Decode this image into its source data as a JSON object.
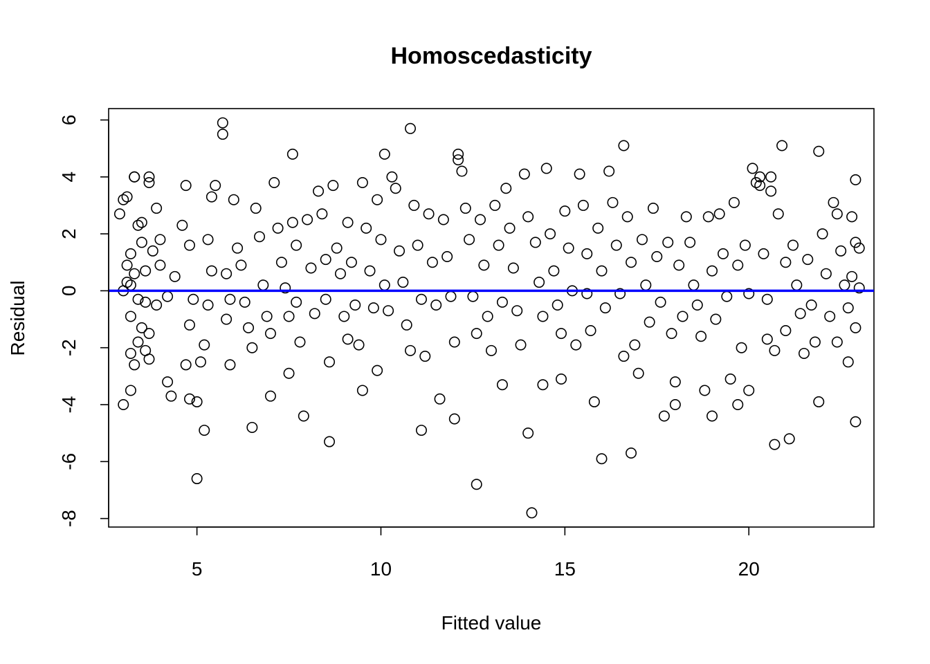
{
  "chart_data": {
    "type": "scatter",
    "title": "Homoscedasticity",
    "xlabel": "Fitted value",
    "ylabel": "Residual",
    "xlim": [
      2.6,
      23.4
    ],
    "ylim": [
      -8.3,
      6.4
    ],
    "x_ticks": [
      5,
      10,
      15,
      20
    ],
    "y_ticks": [
      -8,
      -6,
      -4,
      -2,
      0,
      2,
      4,
      6
    ],
    "grid": false,
    "reference_line": {
      "y": 0,
      "color": "#0000ff"
    },
    "point_color": "#000000",
    "points": [
      [
        3.0,
        3.2
      ],
      [
        3.1,
        3.3
      ],
      [
        2.9,
        2.7
      ],
      [
        3.3,
        4.0
      ],
      [
        3.3,
        4.0
      ],
      [
        3.7,
        4.0
      ],
      [
        3.7,
        3.8
      ],
      [
        3.5,
        2.4
      ],
      [
        3.4,
        2.3
      ],
      [
        3.9,
        2.9
      ],
      [
        4.0,
        1.8
      ],
      [
        3.5,
        1.7
      ],
      [
        3.2,
        1.3
      ],
      [
        3.8,
        1.4
      ],
      [
        3.1,
        0.9
      ],
      [
        3.3,
        0.6
      ],
      [
        3.6,
        0.7
      ],
      [
        4.0,
        0.9
      ],
      [
        3.1,
        0.3
      ],
      [
        3.2,
        0.2
      ],
      [
        3.0,
        0.0
      ],
      [
        3.4,
        -0.3
      ],
      [
        3.6,
        -0.4
      ],
      [
        3.9,
        -0.5
      ],
      [
        3.2,
        -0.9
      ],
      [
        3.5,
        -1.3
      ],
      [
        3.7,
        -1.5
      ],
      [
        3.4,
        -1.8
      ],
      [
        3.2,
        -2.2
      ],
      [
        3.6,
        -2.1
      ],
      [
        3.3,
        -2.6
      ],
      [
        3.7,
        -2.4
      ],
      [
        3.0,
        -4.0
      ],
      [
        3.2,
        -3.5
      ],
      [
        4.2,
        -3.2
      ],
      [
        4.3,
        -3.7
      ],
      [
        4.2,
        -0.2
      ],
      [
        4.4,
        0.5
      ],
      [
        4.6,
        2.3
      ],
      [
        4.7,
        3.7
      ],
      [
        4.8,
        1.6
      ],
      [
        4.9,
        -0.3
      ],
      [
        4.8,
        -1.2
      ],
      [
        4.7,
        -2.6
      ],
      [
        4.8,
        -3.8
      ],
      [
        5.0,
        -3.9
      ],
      [
        5.0,
        -6.6
      ],
      [
        5.2,
        -4.9
      ],
      [
        5.1,
        -2.5
      ],
      [
        5.2,
        -1.9
      ],
      [
        5.3,
        -0.5
      ],
      [
        5.4,
        0.7
      ],
      [
        5.3,
        1.8
      ],
      [
        5.4,
        3.3
      ],
      [
        5.5,
        3.7
      ],
      [
        5.7,
        5.9
      ],
      [
        5.7,
        5.5
      ],
      [
        5.8,
        0.6
      ],
      [
        5.9,
        -0.3
      ],
      [
        5.8,
        -1.0
      ],
      [
        5.9,
        -2.6
      ],
      [
        6.0,
        3.2
      ],
      [
        6.1,
        1.5
      ],
      [
        6.2,
        0.9
      ],
      [
        6.3,
        -0.4
      ],
      [
        6.4,
        -1.3
      ],
      [
        6.5,
        -2.0
      ],
      [
        6.5,
        -4.8
      ],
      [
        6.6,
        2.9
      ],
      [
        6.7,
        1.9
      ],
      [
        6.8,
        0.2
      ],
      [
        6.9,
        -0.9
      ],
      [
        7.0,
        -1.5
      ],
      [
        7.0,
        -3.7
      ],
      [
        7.1,
        3.8
      ],
      [
        7.2,
        2.2
      ],
      [
        7.3,
        1.0
      ],
      [
        7.4,
        0.1
      ],
      [
        7.5,
        -0.9
      ],
      [
        7.5,
        -2.9
      ],
      [
        7.6,
        4.8
      ],
      [
        7.6,
        2.4
      ],
      [
        7.7,
        1.6
      ],
      [
        7.7,
        -0.4
      ],
      [
        7.8,
        -1.8
      ],
      [
        7.9,
        -4.4
      ],
      [
        8.0,
        2.5
      ],
      [
        8.1,
        0.8
      ],
      [
        8.2,
        -0.8
      ],
      [
        8.3,
        3.5
      ],
      [
        8.4,
        2.7
      ],
      [
        8.5,
        1.1
      ],
      [
        8.5,
        -0.3
      ],
      [
        8.6,
        -2.5
      ],
      [
        8.6,
        -5.3
      ],
      [
        8.7,
        3.7
      ],
      [
        8.8,
        1.5
      ],
      [
        8.9,
        0.6
      ],
      [
        9.0,
        -0.9
      ],
      [
        9.1,
        -1.7
      ],
      [
        9.1,
        2.4
      ],
      [
        9.2,
        1.0
      ],
      [
        9.3,
        -0.5
      ],
      [
        9.4,
        -1.9
      ],
      [
        9.5,
        3.8
      ],
      [
        9.5,
        -3.5
      ],
      [
        9.6,
        2.2
      ],
      [
        9.7,
        0.7
      ],
      [
        9.8,
        -0.6
      ],
      [
        9.9,
        -2.8
      ],
      [
        9.9,
        3.2
      ],
      [
        10.0,
        1.8
      ],
      [
        10.1,
        0.2
      ],
      [
        10.1,
        4.8
      ],
      [
        10.2,
        -0.7
      ],
      [
        10.3,
        4.0
      ],
      [
        10.4,
        3.6
      ],
      [
        10.5,
        1.4
      ],
      [
        10.6,
        0.3
      ],
      [
        10.7,
        -1.2
      ],
      [
        10.8,
        -2.1
      ],
      [
        10.8,
        5.7
      ],
      [
        10.9,
        3.0
      ],
      [
        11.0,
        1.6
      ],
      [
        11.1,
        -0.3
      ],
      [
        11.2,
        -2.3
      ],
      [
        11.1,
        -4.9
      ],
      [
        11.3,
        2.7
      ],
      [
        11.4,
        1.0
      ],
      [
        11.5,
        -0.5
      ],
      [
        11.6,
        -3.8
      ],
      [
        11.7,
        2.5
      ],
      [
        11.8,
        1.2
      ],
      [
        11.9,
        -0.2
      ],
      [
        12.0,
        -1.8
      ],
      [
        12.0,
        -4.5
      ],
      [
        12.1,
        4.8
      ],
      [
        12.1,
        4.6
      ],
      [
        12.2,
        4.2
      ],
      [
        12.3,
        2.9
      ],
      [
        12.4,
        1.8
      ],
      [
        12.5,
        -0.2
      ],
      [
        12.6,
        -1.5
      ],
      [
        12.6,
        -6.8
      ],
      [
        12.7,
        2.5
      ],
      [
        12.8,
        0.9
      ],
      [
        12.9,
        -0.9
      ],
      [
        13.0,
        -2.1
      ],
      [
        13.1,
        3.0
      ],
      [
        13.2,
        1.6
      ],
      [
        13.3,
        -0.4
      ],
      [
        13.3,
        -3.3
      ],
      [
        13.4,
        3.6
      ],
      [
        13.5,
        2.2
      ],
      [
        13.6,
        0.8
      ],
      [
        13.7,
        -0.7
      ],
      [
        13.8,
        -1.9
      ],
      [
        13.9,
        4.1
      ],
      [
        14.0,
        2.6
      ],
      [
        14.0,
        -5.0
      ],
      [
        14.1,
        -7.8
      ],
      [
        14.2,
        1.7
      ],
      [
        14.3,
        0.3
      ],
      [
        14.4,
        -0.9
      ],
      [
        14.4,
        -3.3
      ],
      [
        14.5,
        4.3
      ],
      [
        14.6,
        2.0
      ],
      [
        14.7,
        0.7
      ],
      [
        14.8,
        -0.5
      ],
      [
        14.9,
        -1.5
      ],
      [
        14.9,
        -3.1
      ],
      [
        15.0,
        2.8
      ],
      [
        15.1,
        1.5
      ],
      [
        15.2,
        0.0
      ],
      [
        15.3,
        -1.9
      ],
      [
        15.4,
        4.1
      ],
      [
        15.5,
        3.0
      ],
      [
        15.6,
        1.3
      ],
      [
        15.6,
        -0.1
      ],
      [
        15.7,
        -1.4
      ],
      [
        15.8,
        -3.9
      ],
      [
        15.9,
        2.2
      ],
      [
        16.0,
        0.7
      ],
      [
        16.0,
        -5.9
      ],
      [
        16.1,
        -0.6
      ],
      [
        16.2,
        4.2
      ],
      [
        16.3,
        3.1
      ],
      [
        16.4,
        1.6
      ],
      [
        16.5,
        -0.1
      ],
      [
        16.6,
        -2.3
      ],
      [
        16.6,
        5.1
      ],
      [
        16.7,
        2.6
      ],
      [
        16.8,
        1.0
      ],
      [
        16.8,
        -5.7
      ],
      [
        16.9,
        -1.9
      ],
      [
        17.0,
        -2.9
      ],
      [
        17.1,
        1.8
      ],
      [
        17.2,
        0.2
      ],
      [
        17.3,
        -1.1
      ],
      [
        17.4,
        2.9
      ],
      [
        17.5,
        1.2
      ],
      [
        17.6,
        -0.4
      ],
      [
        17.7,
        -4.4
      ],
      [
        17.8,
        1.7
      ],
      [
        17.9,
        -1.5
      ],
      [
        18.0,
        -4.0
      ],
      [
        18.0,
        -3.2
      ],
      [
        18.1,
        0.9
      ],
      [
        18.2,
        -0.9
      ],
      [
        18.3,
        2.6
      ],
      [
        18.4,
        1.7
      ],
      [
        18.5,
        0.2
      ],
      [
        18.6,
        -0.5
      ],
      [
        18.7,
        -1.6
      ],
      [
        18.8,
        -3.5
      ],
      [
        18.9,
        2.6
      ],
      [
        19.0,
        0.7
      ],
      [
        19.0,
        -4.4
      ],
      [
        19.1,
        -1.0
      ],
      [
        19.2,
        2.7
      ],
      [
        19.3,
        1.3
      ],
      [
        19.4,
        -0.2
      ],
      [
        19.5,
        -3.1
      ],
      [
        19.6,
        3.1
      ],
      [
        19.7,
        0.9
      ],
      [
        19.7,
        -4.0
      ],
      [
        19.8,
        -2.0
      ],
      [
        19.9,
        1.6
      ],
      [
        20.0,
        -0.1
      ],
      [
        20.0,
        -3.5
      ],
      [
        20.1,
        4.3
      ],
      [
        20.2,
        3.8
      ],
      [
        20.3,
        4.0
      ],
      [
        20.3,
        3.7
      ],
      [
        20.4,
        1.3
      ],
      [
        20.5,
        -0.3
      ],
      [
        20.5,
        -1.7
      ],
      [
        20.6,
        3.5
      ],
      [
        20.6,
        4.0
      ],
      [
        20.7,
        -2.1
      ],
      [
        20.7,
        -5.4
      ],
      [
        20.8,
        2.7
      ],
      [
        20.9,
        5.1
      ],
      [
        21.0,
        1.0
      ],
      [
        21.0,
        -1.4
      ],
      [
        21.1,
        -5.2
      ],
      [
        21.2,
        1.6
      ],
      [
        21.3,
        0.2
      ],
      [
        21.4,
        -0.8
      ],
      [
        21.5,
        -2.2
      ],
      [
        21.6,
        1.1
      ],
      [
        21.7,
        -0.5
      ],
      [
        21.8,
        -1.8
      ],
      [
        21.9,
        4.9
      ],
      [
        21.9,
        -3.9
      ],
      [
        22.0,
        2.0
      ],
      [
        22.1,
        0.6
      ],
      [
        22.2,
        -0.9
      ],
      [
        22.3,
        3.1
      ],
      [
        22.4,
        2.7
      ],
      [
        22.4,
        -1.8
      ],
      [
        22.5,
        1.4
      ],
      [
        22.6,
        0.2
      ],
      [
        22.7,
        -0.6
      ],
      [
        22.7,
        -2.5
      ],
      [
        22.8,
        2.6
      ],
      [
        22.8,
        0.5
      ],
      [
        22.9,
        -4.6
      ],
      [
        22.9,
        3.9
      ],
      [
        22.9,
        1.7
      ],
      [
        23.0,
        0.1
      ],
      [
        22.9,
        -1.3
      ],
      [
        23.0,
        1.5
      ]
    ]
  }
}
